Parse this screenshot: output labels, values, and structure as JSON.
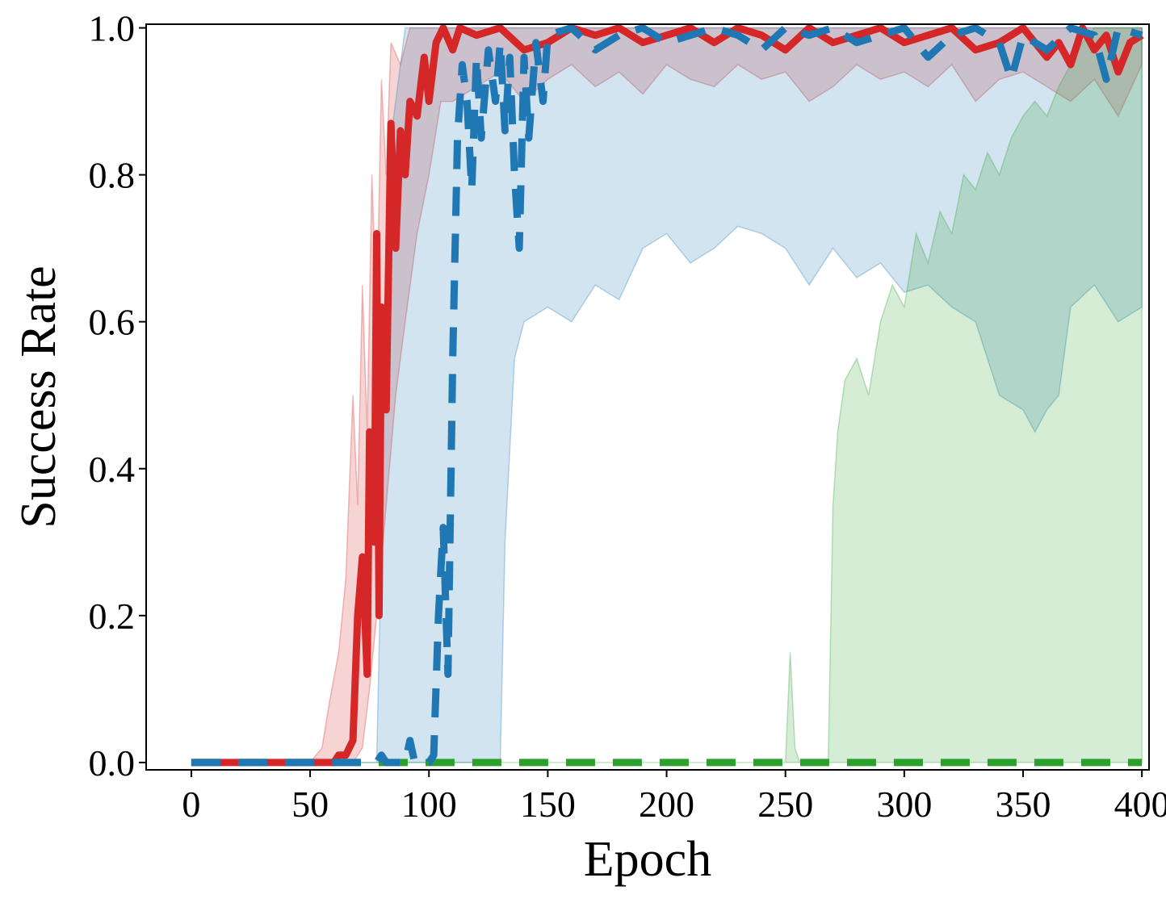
{
  "chart_data": {
    "type": "line",
    "title": "",
    "xlabel": "Epoch",
    "ylabel": "Success Rate",
    "xlim": [
      -19,
      403
    ],
    "ylim": [
      -0.01,
      1.005
    ],
    "xticks": [
      0,
      50,
      100,
      150,
      200,
      250,
      300,
      350,
      400
    ],
    "yticks": [
      0.0,
      0.2,
      0.4,
      0.6,
      0.8,
      1.0
    ],
    "xtick_labels": [
      "0",
      "50",
      "100",
      "150",
      "200",
      "250",
      "300",
      "350",
      "400"
    ],
    "ytick_labels": [
      "0.0",
      "0.2",
      "0.4",
      "0.6",
      "0.8",
      "1.0"
    ],
    "grid": false,
    "legend": "none",
    "series": [
      {
        "color": "#d62728",
        "line_style": "solid",
        "mean": [
          [
            0,
            0
          ],
          [
            55,
            0
          ],
          [
            60,
            0.0
          ],
          [
            62,
            0.01
          ],
          [
            65,
            0.01
          ],
          [
            68,
            0.03
          ],
          [
            70,
            0.2
          ],
          [
            72,
            0.28
          ],
          [
            74,
            0.12
          ],
          [
            75,
            0.45
          ],
          [
            77,
            0.3
          ],
          [
            78,
            0.72
          ],
          [
            79,
            0.2
          ],
          [
            80,
            0.62
          ],
          [
            82,
            0.48
          ],
          [
            84,
            0.87
          ],
          [
            86,
            0.7
          ],
          [
            88,
            0.86
          ],
          [
            90,
            0.8
          ],
          [
            92,
            0.9
          ],
          [
            95,
            0.88
          ],
          [
            98,
            0.96
          ],
          [
            100,
            0.9
          ],
          [
            103,
            0.98
          ],
          [
            106,
            1.0
          ],
          [
            110,
            0.97
          ],
          [
            113,
            1.0
          ],
          [
            120,
            0.99
          ],
          [
            130,
            1.0
          ],
          [
            140,
            0.97
          ],
          [
            150,
            0.98
          ],
          [
            160,
            1.0
          ],
          [
            170,
            0.99
          ],
          [
            180,
            1.0
          ],
          [
            190,
            0.98
          ],
          [
            200,
            0.99
          ],
          [
            210,
            1.0
          ],
          [
            220,
            0.98
          ],
          [
            230,
            1.0
          ],
          [
            240,
            0.99
          ],
          [
            250,
            0.97
          ],
          [
            260,
            1.0
          ],
          [
            270,
            0.98
          ],
          [
            280,
            0.99
          ],
          [
            290,
            1.0
          ],
          [
            300,
            0.98
          ],
          [
            310,
            0.99
          ],
          [
            320,
            1.0
          ],
          [
            330,
            0.97
          ],
          [
            340,
            0.98
          ],
          [
            350,
            1.0
          ],
          [
            360,
            0.96
          ],
          [
            365,
            0.98
          ],
          [
            370,
            0.95
          ],
          [
            375,
            1.0
          ],
          [
            380,
            0.97
          ],
          [
            385,
            0.99
          ],
          [
            390,
            0.94
          ],
          [
            395,
            0.98
          ],
          [
            400,
            0.99
          ]
        ],
        "band_upper": [
          [
            0,
            0
          ],
          [
            50,
            0.0
          ],
          [
            55,
            0.02
          ],
          [
            58,
            0.08
          ],
          [
            62,
            0.15
          ],
          [
            65,
            0.25
          ],
          [
            68,
            0.5
          ],
          [
            70,
            0.35
          ],
          [
            72,
            0.65
          ],
          [
            74,
            0.45
          ],
          [
            76,
            0.8
          ],
          [
            78,
            0.6
          ],
          [
            80,
            0.93
          ],
          [
            82,
            0.8
          ],
          [
            84,
            0.98
          ],
          [
            88,
            0.95
          ],
          [
            92,
            1.0
          ],
          [
            100,
            1.0
          ],
          [
            400,
            1.0
          ]
        ],
        "band_lower": [
          [
            0,
            0
          ],
          [
            60,
            0
          ],
          [
            68,
            0.0
          ],
          [
            72,
            0.02
          ],
          [
            75,
            0.1
          ],
          [
            78,
            0.2
          ],
          [
            82,
            0.35
          ],
          [
            86,
            0.5
          ],
          [
            90,
            0.6
          ],
          [
            95,
            0.72
          ],
          [
            100,
            0.8
          ],
          [
            105,
            0.9
          ],
          [
            110,
            0.9
          ],
          [
            120,
            0.92
          ],
          [
            130,
            0.94
          ],
          [
            140,
            0.9
          ],
          [
            150,
            0.93
          ],
          [
            160,
            0.95
          ],
          [
            170,
            0.92
          ],
          [
            180,
            0.94
          ],
          [
            190,
            0.91
          ],
          [
            200,
            0.95
          ],
          [
            210,
            0.93
          ],
          [
            220,
            0.92
          ],
          [
            230,
            0.95
          ],
          [
            240,
            0.93
          ],
          [
            250,
            0.94
          ],
          [
            260,
            0.9
          ],
          [
            270,
            0.92
          ],
          [
            280,
            0.95
          ],
          [
            290,
            0.93
          ],
          [
            300,
            0.94
          ],
          [
            310,
            0.92
          ],
          [
            320,
            0.95
          ],
          [
            330,
            0.9
          ],
          [
            340,
            0.93
          ],
          [
            350,
            0.94
          ],
          [
            360,
            0.92
          ],
          [
            370,
            0.9
          ],
          [
            380,
            0.93
          ],
          [
            390,
            0.88
          ],
          [
            400,
            0.95
          ]
        ]
      },
      {
        "color": "#1f77b4",
        "line_style": "dashed",
        "mean": [
          [
            0,
            0
          ],
          [
            78,
            0
          ],
          [
            80,
            0.01
          ],
          [
            82,
            0.0
          ],
          [
            90,
            0.0
          ],
          [
            92,
            0.03
          ],
          [
            94,
            0.0
          ],
          [
            100,
            0.0
          ],
          [
            102,
            0.01
          ],
          [
            104,
            0.2
          ],
          [
            106,
            0.32
          ],
          [
            108,
            0.12
          ],
          [
            110,
            0.55
          ],
          [
            112,
            0.85
          ],
          [
            114,
            0.95
          ],
          [
            116,
            0.9
          ],
          [
            118,
            0.78
          ],
          [
            120,
            0.96
          ],
          [
            122,
            0.85
          ],
          [
            125,
            0.97
          ],
          [
            128,
            0.9
          ],
          [
            130,
            0.98
          ],
          [
            132,
            0.86
          ],
          [
            134,
            0.96
          ],
          [
            136,
            0.8
          ],
          [
            138,
            0.7
          ],
          [
            140,
            0.96
          ],
          [
            142,
            0.85
          ],
          [
            145,
            0.98
          ],
          [
            148,
            0.9
          ],
          [
            150,
            0.99
          ],
          [
            160,
            1.0
          ],
          [
            170,
            0.97
          ],
          [
            180,
            0.99
          ],
          [
            190,
            1.0
          ],
          [
            200,
            0.98
          ],
          [
            210,
            0.99
          ],
          [
            220,
            1.0
          ],
          [
            230,
            0.99
          ],
          [
            240,
            0.97
          ],
          [
            250,
            1.0
          ],
          [
            260,
            0.99
          ],
          [
            270,
            1.0
          ],
          [
            280,
            0.98
          ],
          [
            290,
            0.99
          ],
          [
            300,
            1.0
          ],
          [
            310,
            0.96
          ],
          [
            320,
            0.99
          ],
          [
            330,
            1.0
          ],
          [
            340,
            0.98
          ],
          [
            345,
            0.93
          ],
          [
            350,
            0.99
          ],
          [
            360,
            0.97
          ],
          [
            370,
            1.0
          ],
          [
            380,
            0.99
          ],
          [
            385,
            0.93
          ],
          [
            390,
            1.0
          ],
          [
            400,
            0.99
          ]
        ],
        "band_upper": [
          [
            0,
            0
          ],
          [
            78,
            0
          ],
          [
            80,
            0.3
          ],
          [
            82,
            0.7
          ],
          [
            84,
            0.85
          ],
          [
            86,
            0.9
          ],
          [
            88,
            0.95
          ],
          [
            90,
            1.0
          ],
          [
            400,
            1.0
          ]
        ],
        "band_lower": [
          [
            0,
            0
          ],
          [
            100,
            0
          ],
          [
            130,
            0.0
          ],
          [
            132,
            0.3
          ],
          [
            136,
            0.55
          ],
          [
            140,
            0.6
          ],
          [
            150,
            0.62
          ],
          [
            160,
            0.6
          ],
          [
            170,
            0.65
          ],
          [
            180,
            0.63
          ],
          [
            190,
            0.7
          ],
          [
            200,
            0.72
          ],
          [
            210,
            0.68
          ],
          [
            220,
            0.7
          ],
          [
            230,
            0.73
          ],
          [
            240,
            0.72
          ],
          [
            250,
            0.7
          ],
          [
            260,
            0.65
          ],
          [
            270,
            0.7
          ],
          [
            280,
            0.66
          ],
          [
            290,
            0.68
          ],
          [
            300,
            0.64
          ],
          [
            310,
            0.65
          ],
          [
            320,
            0.62
          ],
          [
            330,
            0.6
          ],
          [
            340,
            0.5
          ],
          [
            350,
            0.48
          ],
          [
            355,
            0.45
          ],
          [
            360,
            0.48
          ],
          [
            365,
            0.5
          ],
          [
            370,
            0.62
          ],
          [
            380,
            0.65
          ],
          [
            390,
            0.6
          ],
          [
            400,
            0.62
          ]
        ]
      },
      {
        "color": "#2ca02c",
        "line_style": "dashed",
        "mean": [
          [
            0,
            0
          ],
          [
            400,
            0
          ]
        ],
        "band_upper": [
          [
            0,
            0
          ],
          [
            250,
            0.0
          ],
          [
            252,
            0.15
          ],
          [
            254,
            0.02
          ],
          [
            256,
            0.0
          ],
          [
            268,
            0.0
          ],
          [
            270,
            0.35
          ],
          [
            272,
            0.45
          ],
          [
            275,
            0.52
          ],
          [
            280,
            0.55
          ],
          [
            285,
            0.5
          ],
          [
            290,
            0.6
          ],
          [
            295,
            0.65
          ],
          [
            300,
            0.62
          ],
          [
            305,
            0.72
          ],
          [
            310,
            0.68
          ],
          [
            315,
            0.75
          ],
          [
            320,
            0.72
          ],
          [
            325,
            0.8
          ],
          [
            330,
            0.78
          ],
          [
            335,
            0.83
          ],
          [
            340,
            0.8
          ],
          [
            345,
            0.85
          ],
          [
            350,
            0.88
          ],
          [
            355,
            0.9
          ],
          [
            360,
            0.88
          ],
          [
            365,
            0.92
          ],
          [
            370,
            0.95
          ],
          [
            375,
            0.98
          ],
          [
            380,
            1.0
          ],
          [
            390,
            1.0
          ],
          [
            400,
            1.0
          ]
        ],
        "band_lower": [
          [
            0,
            0
          ],
          [
            400,
            0
          ]
        ]
      }
    ]
  }
}
